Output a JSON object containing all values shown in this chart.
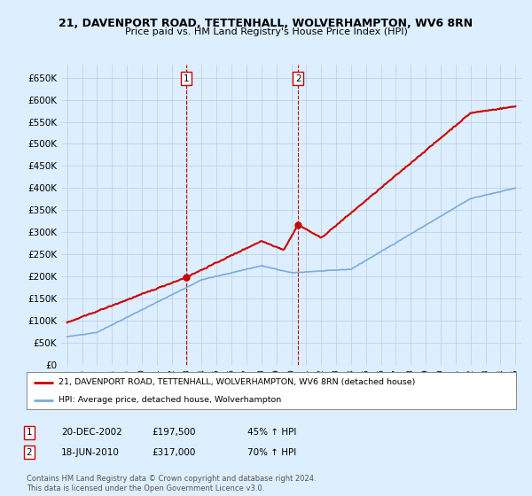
{
  "title": "21, DAVENPORT ROAD, TETTENHALL, WOLVERHAMPTON, WV6 8RN",
  "subtitle": "Price paid vs. HM Land Registry's House Price Index (HPI)",
  "legend_line1": "21, DAVENPORT ROAD, TETTENHALL, WOLVERHAMPTON, WV6 8RN (detached house)",
  "legend_line2": "HPI: Average price, detached house, Wolverhampton",
  "sale1_date": "20-DEC-2002",
  "sale1_price": 197500,
  "sale1_label": "45% ↑ HPI",
  "sale2_date": "18-JUN-2010",
  "sale2_price": 317000,
  "sale2_label": "70% ↑ HPI",
  "footer": "Contains HM Land Registry data © Crown copyright and database right 2024.\nThis data is licensed under the Open Government Licence v3.0.",
  "red_color": "#cc0000",
  "blue_color": "#7aabdc",
  "background_color": "#ddeeff",
  "ylim_max": 680000,
  "yticks": [
    0,
    50000,
    100000,
    150000,
    200000,
    250000,
    300000,
    350000,
    400000,
    450000,
    500000,
    550000,
    600000,
    650000
  ],
  "ytick_labels": [
    "£0",
    "£50K",
    "£100K",
    "£150K",
    "£200K",
    "£250K",
    "£300K",
    "£350K",
    "£400K",
    "£450K",
    "£500K",
    "£550K",
    "£600K",
    "£650K"
  ],
  "year_start": 1995,
  "year_end": 2025
}
